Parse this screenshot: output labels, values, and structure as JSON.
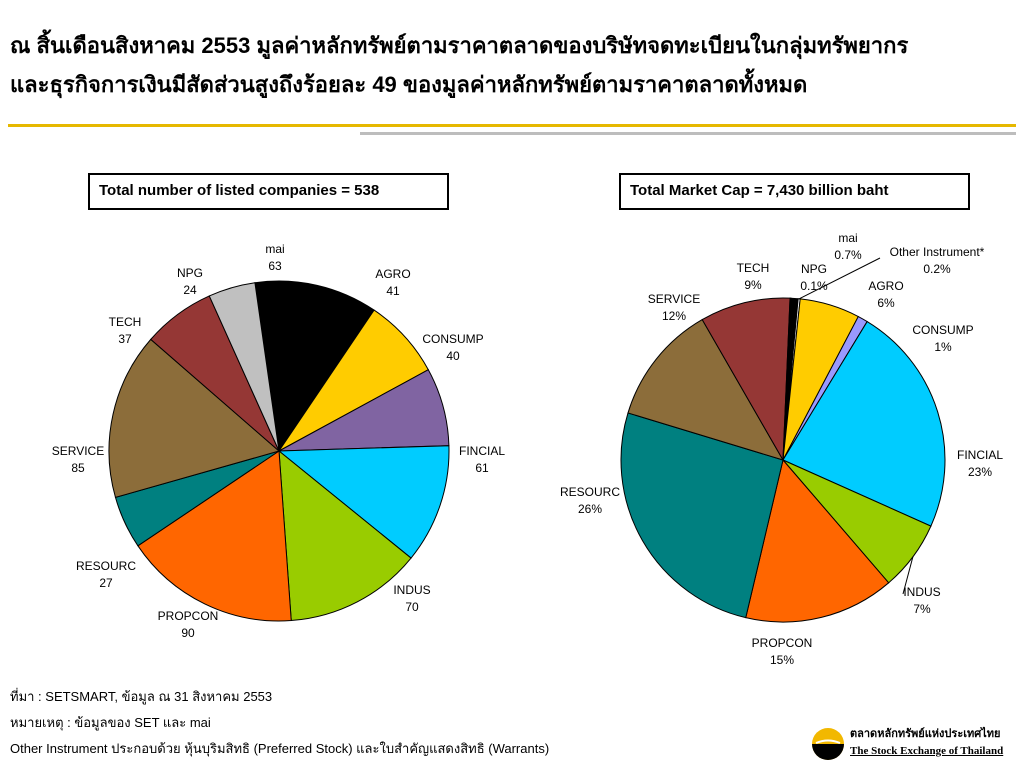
{
  "header": {
    "title_line1": "ณ สิ้นเดือนสิงหาคม 2553 มูลค่าหลักทรัพย์ตามราคาตลาดของบริษัทจดทะเบียนในกลุ่มทรัพยากร",
    "title_line2": "และธุรกิจการเงินมีสัดส่วนสูงถึงร้อยละ 49 ของมูลค่าหลักทรัพย์ตามราคาตลาดทั้งหมด"
  },
  "chart_data": [
    {
      "type": "pie",
      "title": "Total number of listed companies = 538",
      "start_category": "mai",
      "slices": [
        {
          "label": "mai",
          "value_text": "63",
          "value": 63,
          "color": "#000000"
        },
        {
          "label": "AGRO",
          "value_text": "41",
          "value": 41,
          "color": "#ffcc00"
        },
        {
          "label": "CONSUMP",
          "value_text": "40",
          "value": 40,
          "color": "#8064a2"
        },
        {
          "label": "FINCIAL",
          "value_text": "61",
          "value": 61,
          "color": "#00ccff"
        },
        {
          "label": "INDUS",
          "value_text": "70",
          "value": 70,
          "color": "#99cc00"
        },
        {
          "label": "PROPCON",
          "value_text": "90",
          "value": 90,
          "color": "#ff6600"
        },
        {
          "label": "RESOURC",
          "value_text": "27",
          "value": 27,
          "color": "#008080"
        },
        {
          "label": "SERVICE",
          "value_text": "85",
          "value": 85,
          "color": "#8c6d3a"
        },
        {
          "label": "TECH",
          "value_text": "37",
          "value": 37,
          "color": "#953735"
        },
        {
          "label": "NPG",
          "value_text": "24",
          "value": 24,
          "color": "#c0c0c0"
        }
      ]
    },
    {
      "type": "pie",
      "title": "Total Market Cap = 7,430  billion baht",
      "slices": [
        {
          "label": "mai",
          "value_text": "0.7%",
          "value": 0.7,
          "color": "#000000"
        },
        {
          "label": "Other Instrument*",
          "value_text": "0.2%",
          "value": 0.2,
          "color": "#ffffff"
        },
        {
          "label": "AGRO",
          "value_text": "6%",
          "value": 6,
          "color": "#ffcc00"
        },
        {
          "label": "CONSUMP",
          "value_text": "1%",
          "value": 1,
          "color": "#9999ff"
        },
        {
          "label": "FINCIAL",
          "value_text": "23%",
          "value": 23,
          "color": "#00ccff"
        },
        {
          "label": "INDUS",
          "value_text": "7%",
          "value": 7,
          "color": "#99cc00"
        },
        {
          "label": "PROPCON",
          "value_text": "15%",
          "value": 15,
          "color": "#ff6600"
        },
        {
          "label": "RESOURC",
          "value_text": "26%",
          "value": 26,
          "color": "#008080"
        },
        {
          "label": "SERVICE",
          "value_text": "12%",
          "value": 12,
          "color": "#8c6d3a"
        },
        {
          "label": "TECH",
          "value_text": "9%",
          "value": 9,
          "color": "#953735"
        },
        {
          "label": "NPG",
          "value_text": "0.1%",
          "value": 0.1,
          "color": "#000000"
        }
      ]
    }
  ],
  "notes": {
    "source": "ที่มา : SETSMART, ข้อมูล ณ 31 สิงหาคม 2553",
    "remark": "หมายเหตุ : ข้อมูลของ SET และ mai",
    "other": "Other Instrument ประกอบด้วย หุ้นบุริมสิทธิ (Preferred Stock) และใบสำคัญแสดงสิทธิ (Warrants)"
  },
  "logo": {
    "name_th": "ตลาดหลักทรัพย์แห่งประเทศไทย",
    "name_en": "The Stock Exchange of Thailand"
  }
}
